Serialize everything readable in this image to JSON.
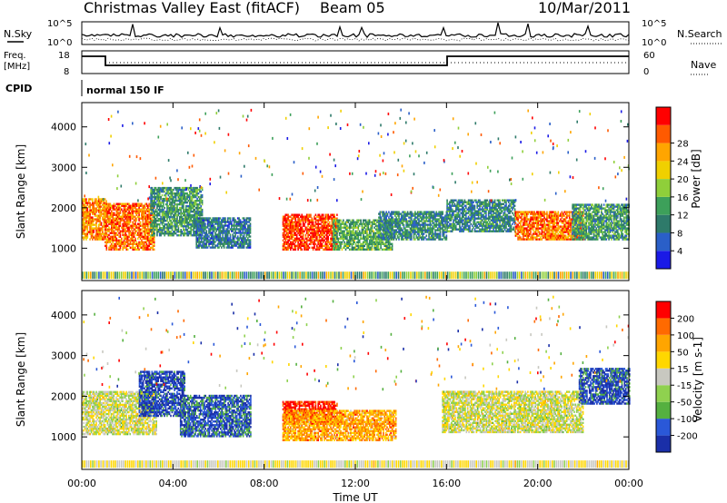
{
  "header": {
    "title": "Christmas Valley East (fitACF)",
    "beam": "Beam 05",
    "date": "10/Mar/2011"
  },
  "top_panels": {
    "nsky_label": "N.Sky",
    "nsky_ticks": [
      "10^5",
      "10^0"
    ],
    "nsearch_label": "N.Search",
    "nsearch_ticks": [
      "10^5",
      "10^0"
    ],
    "freq_label_1": "Freq.",
    "freq_label_2": "[MHz]",
    "freq_ticks": [
      "18",
      "8"
    ],
    "nave_label": "Nave",
    "nave_ticks": [
      "60",
      "0"
    ],
    "cpid_label": "CPID",
    "cpid_value": "normal 150 IF"
  },
  "colors": {
    "power_scale": [
      "#1a1ae6",
      "#2a5fc8",
      "#2e7a6a",
      "#3da05a",
      "#8fcf3a",
      "#f0d000",
      "#ffa500",
      "#ff5a00",
      "#ff0000"
    ],
    "velocity_scale": [
      "#1a2fa8",
      "#2a58d8",
      "#55b040",
      "#8fd14f",
      "#c8c8c0",
      "#ffd700",
      "#ffa500",
      "#ff6a00",
      "#ff0000"
    ]
  },
  "chart_data": [
    {
      "type": "heatmap",
      "title": "Power",
      "xlabel": "Time UT",
      "ylabel": "Slant Range [km]",
      "x_ticks": [
        "00:00",
        "04:00",
        "08:00",
        "12:00",
        "16:00",
        "20:00",
        "00:00"
      ],
      "xlim_hours": [
        0,
        24
      ],
      "ylim": [
        200,
        4600
      ],
      "y_ticks": [
        1000,
        2000,
        3000,
        4000
      ],
      "colorbar": {
        "label": "Power [dB]",
        "ticks": [
          "4",
          "8",
          "12",
          "16",
          "20",
          "24",
          "28"
        ],
        "range": [
          0,
          32
        ]
      },
      "regions": [
        {
          "t": [
            0,
            1.1
          ],
          "r": [
            1200,
            2200
          ],
          "level": 0.75
        },
        {
          "t": [
            1.0,
            3.2
          ],
          "r": [
            950,
            2100
          ],
          "level": 0.8
        },
        {
          "t": [
            3.0,
            5.3
          ],
          "r": [
            1300,
            2500
          ],
          "level": 0.35
        },
        {
          "t": [
            5.0,
            7.4
          ],
          "r": [
            1000,
            1750
          ],
          "level": 0.25
        },
        {
          "t": [
            8.8,
            11.2
          ],
          "r": [
            950,
            1850
          ],
          "level": 0.9
        },
        {
          "t": [
            11.0,
            13.6
          ],
          "r": [
            950,
            1700
          ],
          "level": 0.4
        },
        {
          "t": [
            13.0,
            16.0
          ],
          "r": [
            1200,
            1900
          ],
          "level": 0.3
        },
        {
          "t": [
            16.0,
            19.0
          ],
          "r": [
            1400,
            2200
          ],
          "level": 0.3
        },
        {
          "t": [
            19.0,
            22.0
          ],
          "r": [
            1200,
            1900
          ],
          "level": 0.8
        },
        {
          "t": [
            21.5,
            24.0
          ],
          "r": [
            1200,
            2100
          ],
          "level": 0.35
        }
      ]
    },
    {
      "type": "heatmap",
      "title": "Velocity",
      "xlabel": "Time UT",
      "ylabel": "Slant Range [km]",
      "x_ticks": [
        "00:00",
        "04:00",
        "08:00",
        "12:00",
        "16:00",
        "20:00",
        "00:00"
      ],
      "xlim_hours": [
        0,
        24
      ],
      "ylim": [
        200,
        4600
      ],
      "y_ticks": [
        1000,
        2000,
        3000,
        4000
      ],
      "colorbar": {
        "label": "Velocity [m s-1]",
        "ticks": [
          "200",
          "100",
          "50",
          "15",
          "-15",
          "-50",
          "-100",
          "-200"
        ],
        "range": [
          -250,
          250
        ]
      },
      "regions": [
        {
          "t": [
            0,
            3.3
          ],
          "r": [
            1050,
            2100
          ],
          "level": 0.5
        },
        {
          "t": [
            2.5,
            4.5
          ],
          "r": [
            1500,
            2600
          ],
          "level": 0.1
        },
        {
          "t": [
            4.3,
            7.4
          ],
          "r": [
            1000,
            2000
          ],
          "level": 0.15
        },
        {
          "t": [
            8.8,
            11.2
          ],
          "r": [
            1300,
            1850
          ],
          "level": 0.95
        },
        {
          "t": [
            8.8,
            13.8
          ],
          "r": [
            900,
            1650
          ],
          "level": 0.72
        },
        {
          "t": [
            15.8,
            22.0
          ],
          "r": [
            1100,
            2100
          ],
          "level": 0.5
        },
        {
          "t": [
            21.8,
            24.0
          ],
          "r": [
            1800,
            2700
          ],
          "level": 0.12
        }
      ]
    }
  ]
}
